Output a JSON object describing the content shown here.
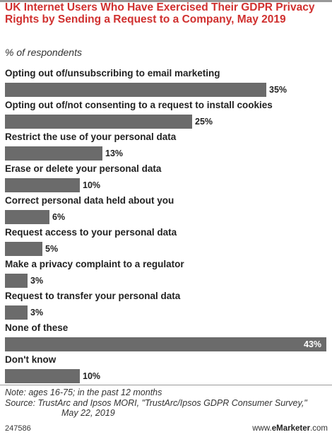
{
  "chart_data": {
    "type": "bar",
    "orientation": "horizontal",
    "title": "UK Internet Users Who Have Exercised Their GDPR Privacy Rights by Sending a Request to a Company, May 2019",
    "subtitle": "% of respondents",
    "categories": [
      "Opting out of/unsubscribing to email marketing",
      "Opting out of/not consenting to a request to install cookies",
      "Restrict the use of your personal data",
      "Erase or delete your personal data",
      "Correct personal data held about you",
      "Request access to your personal data",
      "Make a privacy complaint to a regulator",
      "Request to transfer your personal data",
      "None of these",
      "Don't know"
    ],
    "values": [
      35,
      25,
      13,
      10,
      6,
      5,
      3,
      3,
      43,
      10
    ],
    "value_labels": [
      "35%",
      "25%",
      "13%",
      "10%",
      "6%",
      "5%",
      "3%",
      "3%",
      "43%",
      "10%"
    ],
    "bar_color": "#6b6b6b",
    "title_color": "#d0302f"
  },
  "footer": {
    "note": "Note: ages 16-75; in the past 12 months",
    "source_line1": "Source: TrustArc and Ipsos MORI, \"TrustArc/Ipsos GDPR Consumer Survey,\"",
    "source_line2": "May 22, 2019",
    "chart_id": "247586",
    "brand_prefix": "www.",
    "brand_name": "eMarketer",
    "brand_suffix": ".com"
  }
}
